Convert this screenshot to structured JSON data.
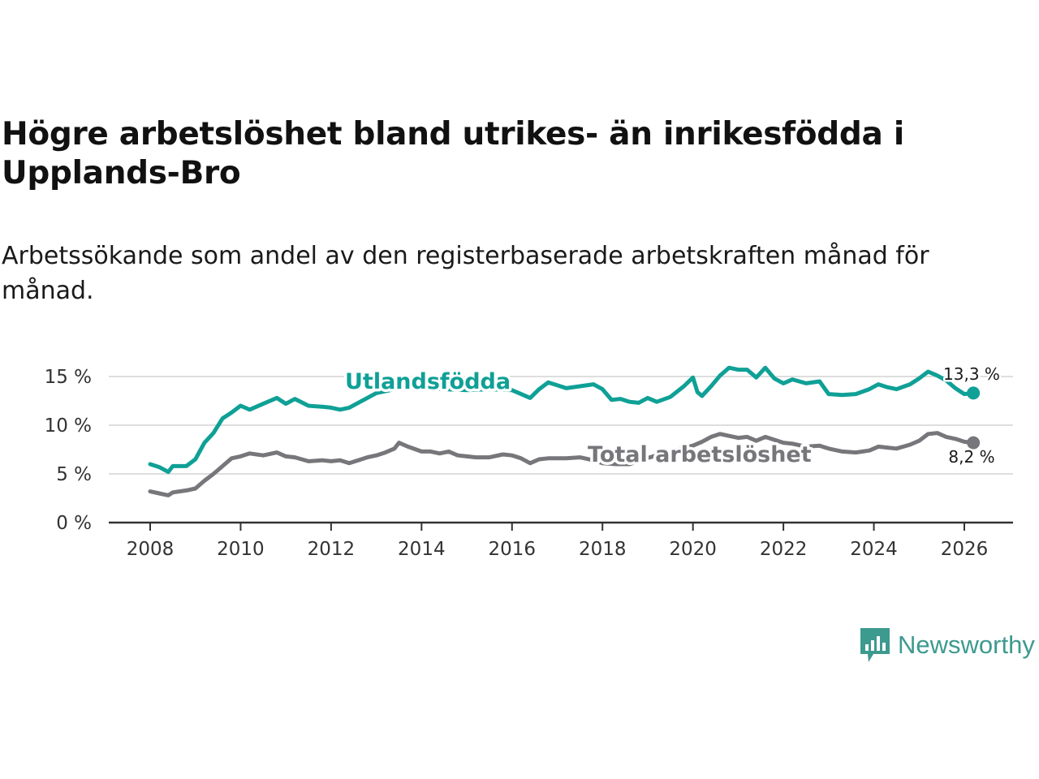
{
  "title": "Högre arbetslöshet bland utrikes- än inrikesfödda i Upplands-Bro",
  "subtitle": "Arbetssökande som andel av den registerbaserade arbetskraften månad för månad.",
  "brand": {
    "name": "Newsworthy",
    "icon": "newsworthy-logo-icon"
  },
  "colors": {
    "foreign_born": "#0fa096",
    "total": "#76767b",
    "grid": "#dedede",
    "axis": "#333333",
    "brand": "#3d9a8f"
  },
  "chart_data": {
    "type": "line",
    "title": "Högre arbetslöshet bland utrikes- än inrikesfödda i Upplands-Bro",
    "xlabel": "",
    "ylabel": "",
    "xlim": [
      2007.6,
      2027.2
    ],
    "ylim": [
      0,
      15
    ],
    "x_ticks": [
      2008,
      2010,
      2012,
      2014,
      2016,
      2018,
      2020,
      2022,
      2024,
      2026
    ],
    "y_ticks": [
      {
        "value": 0,
        "label": "0 %"
      },
      {
        "value": 5,
        "label": "5 %"
      },
      {
        "value": 10,
        "label": "10 %"
      },
      {
        "value": 15,
        "label": "15 %"
      }
    ],
    "series": [
      {
        "name": "Utlandsfödda",
        "color": "#0fa096",
        "end_label": "13,3 %",
        "points": [
          [
            2008.0,
            6.0
          ],
          [
            2008.2,
            5.7
          ],
          [
            2008.4,
            5.2
          ],
          [
            2008.5,
            5.8
          ],
          [
            2008.8,
            5.8
          ],
          [
            2009.0,
            6.5
          ],
          [
            2009.2,
            8.2
          ],
          [
            2009.4,
            9.2
          ],
          [
            2009.6,
            10.7
          ],
          [
            2009.8,
            11.3
          ],
          [
            2010.0,
            12.0
          ],
          [
            2010.2,
            11.6
          ],
          [
            2010.5,
            12.2
          ],
          [
            2010.8,
            12.8
          ],
          [
            2011.0,
            12.2
          ],
          [
            2011.2,
            12.7
          ],
          [
            2011.5,
            12.0
          ],
          [
            2011.8,
            11.9
          ],
          [
            2012.0,
            11.8
          ],
          [
            2012.2,
            11.6
          ],
          [
            2012.4,
            11.8
          ],
          [
            2012.6,
            12.3
          ],
          [
            2012.8,
            12.8
          ],
          [
            2013.0,
            13.3
          ],
          [
            2013.5,
            13.8
          ],
          [
            2014.0,
            13.9
          ],
          [
            2014.5,
            13.7
          ],
          [
            2015.0,
            13.6
          ],
          [
            2015.5,
            13.7
          ],
          [
            2016.0,
            13.6
          ],
          [
            2016.2,
            13.2
          ],
          [
            2016.4,
            12.8
          ],
          [
            2016.6,
            13.7
          ],
          [
            2016.8,
            14.4
          ],
          [
            2017.0,
            14.1
          ],
          [
            2017.2,
            13.8
          ],
          [
            2017.5,
            14.0
          ],
          [
            2017.8,
            14.2
          ],
          [
            2018.0,
            13.7
          ],
          [
            2018.2,
            12.6
          ],
          [
            2018.4,
            12.7
          ],
          [
            2018.6,
            12.4
          ],
          [
            2018.8,
            12.3
          ],
          [
            2019.0,
            12.8
          ],
          [
            2019.2,
            12.4
          ],
          [
            2019.5,
            12.9
          ],
          [
            2019.8,
            14.0
          ],
          [
            2020.0,
            14.9
          ],
          [
            2020.1,
            13.4
          ],
          [
            2020.2,
            13.0
          ],
          [
            2020.4,
            14.0
          ],
          [
            2020.6,
            15.1
          ],
          [
            2020.8,
            15.9
          ],
          [
            2021.0,
            15.7
          ],
          [
            2021.2,
            15.7
          ],
          [
            2021.4,
            14.9
          ],
          [
            2021.6,
            15.9
          ],
          [
            2021.8,
            14.8
          ],
          [
            2022.0,
            14.3
          ],
          [
            2022.2,
            14.7
          ],
          [
            2022.5,
            14.3
          ],
          [
            2022.8,
            14.5
          ],
          [
            2023.0,
            13.2
          ],
          [
            2023.3,
            13.1
          ],
          [
            2023.6,
            13.2
          ],
          [
            2023.9,
            13.7
          ],
          [
            2024.1,
            14.2
          ],
          [
            2024.3,
            13.9
          ],
          [
            2024.5,
            13.7
          ],
          [
            2024.8,
            14.2
          ],
          [
            2025.0,
            14.8
          ],
          [
            2025.2,
            15.5
          ],
          [
            2025.4,
            15.1
          ],
          [
            2025.6,
            14.6
          ],
          [
            2025.8,
            13.8
          ],
          [
            2026.0,
            13.2
          ],
          [
            2026.2,
            13.3
          ]
        ]
      },
      {
        "name": "Total arbetslöshet",
        "color": "#76767b",
        "end_label": "8,2 %",
        "points": [
          [
            2008.0,
            3.2
          ],
          [
            2008.2,
            3.0
          ],
          [
            2008.4,
            2.8
          ],
          [
            2008.5,
            3.1
          ],
          [
            2008.8,
            3.3
          ],
          [
            2009.0,
            3.5
          ],
          [
            2009.2,
            4.3
          ],
          [
            2009.4,
            5.0
          ],
          [
            2009.6,
            5.8
          ],
          [
            2009.8,
            6.6
          ],
          [
            2010.0,
            6.8
          ],
          [
            2010.2,
            7.1
          ],
          [
            2010.5,
            6.9
          ],
          [
            2010.8,
            7.2
          ],
          [
            2011.0,
            6.8
          ],
          [
            2011.2,
            6.7
          ],
          [
            2011.5,
            6.3
          ],
          [
            2011.8,
            6.4
          ],
          [
            2012.0,
            6.3
          ],
          [
            2012.2,
            6.4
          ],
          [
            2012.4,
            6.1
          ],
          [
            2012.6,
            6.4
          ],
          [
            2012.8,
            6.7
          ],
          [
            2013.0,
            6.9
          ],
          [
            2013.2,
            7.2
          ],
          [
            2013.4,
            7.6
          ],
          [
            2013.5,
            8.2
          ],
          [
            2013.7,
            7.8
          ],
          [
            2014.0,
            7.3
          ],
          [
            2014.2,
            7.3
          ],
          [
            2014.4,
            7.1
          ],
          [
            2014.6,
            7.3
          ],
          [
            2014.8,
            6.9
          ],
          [
            2015.0,
            6.8
          ],
          [
            2015.2,
            6.7
          ],
          [
            2015.5,
            6.7
          ],
          [
            2015.8,
            7.0
          ],
          [
            2016.0,
            6.9
          ],
          [
            2016.2,
            6.6
          ],
          [
            2016.4,
            6.1
          ],
          [
            2016.6,
            6.5
          ],
          [
            2016.8,
            6.6
          ],
          [
            2017.0,
            6.6
          ],
          [
            2017.2,
            6.6
          ],
          [
            2017.5,
            6.7
          ],
          [
            2017.8,
            6.4
          ],
          [
            2018.0,
            6.1
          ],
          [
            2018.3,
            6.0
          ],
          [
            2018.6,
            6.0
          ],
          [
            2018.9,
            6.5
          ],
          [
            2019.2,
            6.9
          ],
          [
            2019.5,
            7.3
          ],
          [
            2019.8,
            7.7
          ],
          [
            2020.0,
            7.9
          ],
          [
            2020.2,
            8.3
          ],
          [
            2020.4,
            8.8
          ],
          [
            2020.6,
            9.1
          ],
          [
            2020.8,
            8.9
          ],
          [
            2021.0,
            8.7
          ],
          [
            2021.2,
            8.8
          ],
          [
            2021.4,
            8.4
          ],
          [
            2021.6,
            8.8
          ],
          [
            2021.8,
            8.5
          ],
          [
            2022.0,
            8.2
          ],
          [
            2022.2,
            8.1
          ],
          [
            2022.5,
            7.8
          ],
          [
            2022.8,
            7.9
          ],
          [
            2023.0,
            7.6
          ],
          [
            2023.3,
            7.3
          ],
          [
            2023.6,
            7.2
          ],
          [
            2023.9,
            7.4
          ],
          [
            2024.1,
            7.8
          ],
          [
            2024.3,
            7.7
          ],
          [
            2024.5,
            7.6
          ],
          [
            2024.8,
            8.0
          ],
          [
            2025.0,
            8.4
          ],
          [
            2025.2,
            9.1
          ],
          [
            2025.4,
            9.2
          ],
          [
            2025.6,
            8.8
          ],
          [
            2025.8,
            8.6
          ],
          [
            2026.0,
            8.3
          ],
          [
            2026.2,
            8.2
          ]
        ]
      }
    ]
  }
}
